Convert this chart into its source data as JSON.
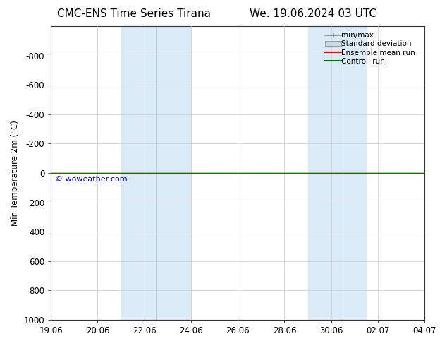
{
  "title_left": "CMC-ENS Time Series Tirana",
  "title_right": "We. 19.06.2024 03 UTC",
  "ylabel": "Min Temperature 2m (°C)",
  "ylim_bottom": 1000,
  "ylim_top": -1000,
  "yticks": [
    -800,
    -600,
    -400,
    -200,
    0,
    200,
    400,
    600,
    800,
    1000
  ],
  "xmin": 0,
  "xmax": 16,
  "bg_color": "#ffffff",
  "plot_bg_color": "#ffffff",
  "shaded_regions": [
    {
      "xstart": 3.0,
      "xend": 6.0
    },
    {
      "xstart": 11.0,
      "xend": 13.5
    }
  ],
  "shaded_color": "#daeaf7",
  "shaded_inner_lines": [
    4.5,
    12.5
  ],
  "control_run_y": 0,
  "ensemble_mean_y": 2,
  "control_run_color": "#008000",
  "ensemble_mean_color": "#ff0000",
  "minmax_color": "#aaaaaa",
  "stddev_color": "#c8dce8",
  "watermark": "© woweather.com",
  "watermark_color": "#0000cc",
  "legend_labels": [
    "min/max",
    "Standard deviation",
    "Ensemble mean run",
    "Controll run"
  ],
  "legend_colors": [
    "#888888",
    "#c8dce8",
    "#ff0000",
    "#008000"
  ],
  "tick_dates": [
    0,
    2,
    4,
    6,
    8,
    10,
    12,
    14,
    16
  ],
  "tick_labels": [
    "19.06",
    "20.06",
    "22.06",
    "24.06",
    "26.06",
    "28.06",
    "30.06",
    "02.07",
    "04.07"
  ],
  "grid_color": "#cccccc",
  "font_size": 8.5,
  "title_fontsize": 11
}
